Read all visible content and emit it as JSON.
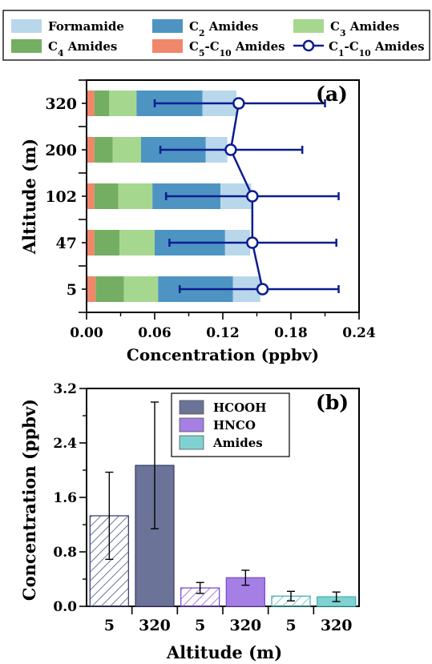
{
  "colors": {
    "formamide": "#b9d7ea",
    "c2": "#4d94c2",
    "c3": "#a6d78f",
    "c4": "#74ae62",
    "c5c10": "#f0876a",
    "line": "#0a1d8f",
    "hcooh": "#6c7398",
    "hnco": "#a57fe4",
    "amides": "#80d2d2"
  },
  "chart_data": [
    {
      "type": "bar",
      "orientation": "horizontal",
      "stacked": true,
      "panel_label": "(a)",
      "xlabel": "Concentration (ppbv)",
      "ylabel": "Altitude (m)",
      "xlim": [
        0,
        0.24
      ],
      "xticks": [
        "0.00",
        "0.06",
        "0.12",
        "0.18",
        "0.24"
      ],
      "categories": [
        "320",
        "200",
        "102",
        "47",
        "5"
      ],
      "series": [
        {
          "name": "C5-C10 Amides",
          "legend": {
            "base": "C",
            "sub": "5",
            "mid": "-C",
            "sub2": "10",
            "rest": " Amides"
          },
          "color_key": "c5c10",
          "values": [
            0.007,
            0.007,
            0.007,
            0.007,
            0.008
          ]
        },
        {
          "name": "C4 Amides",
          "legend": {
            "base": "C",
            "sub": "4",
            "rest": " Amides"
          },
          "color_key": "c4",
          "values": [
            0.013,
            0.016,
            0.021,
            0.022,
            0.025
          ]
        },
        {
          "name": "C3 Amides",
          "legend": {
            "base": "C",
            "sub": "3",
            "rest": " Amides"
          },
          "color_key": "c3",
          "values": [
            0.024,
            0.025,
            0.03,
            0.031,
            0.03
          ]
        },
        {
          "name": "C2 Amides",
          "legend": {
            "base": "C",
            "sub": "2",
            "rest": " Amides"
          },
          "color_key": "c2",
          "values": [
            0.058,
            0.057,
            0.06,
            0.062,
            0.066
          ]
        },
        {
          "name": "Formamide",
          "legend": {
            "base": "Formamide"
          },
          "color_key": "formamide",
          "values": [
            0.03,
            0.019,
            0.027,
            0.022,
            0.024
          ]
        }
      ],
      "line_series": {
        "name": "C1-C10 Amides",
        "legend": {
          "base": "C",
          "sub": "1",
          "mid": "-C",
          "sub2": "10",
          "rest": " Amides"
        },
        "values": [
          0.134,
          0.127,
          0.146,
          0.146,
          0.155
        ],
        "error_low": [
          0.06,
          0.065,
          0.07,
          0.073,
          0.082
        ],
        "error_high": [
          0.21,
          0.19,
          0.222,
          0.22,
          0.222
        ]
      },
      "legend_order": [
        "Formamide",
        "C2 Amides",
        "C3 Amides",
        "C4 Amides",
        "C5-C10 Amides",
        "C1-C10 Amides"
      ]
    },
    {
      "type": "bar",
      "panel_label": "(b)",
      "xlabel": "Altitude (m)",
      "ylabel": "Concentration (ppbv)",
      "ylim": [
        0,
        3.2
      ],
      "yticks": [
        "0.0",
        "0.8",
        "1.6",
        "2.4",
        "3.2"
      ],
      "categories": [
        "5",
        "320",
        "5",
        "320",
        "5",
        "320"
      ],
      "values": [
        1.33,
        2.07,
        0.27,
        0.42,
        0.15,
        0.14
      ],
      "error_low": [
        0.69,
        1.14,
        0.19,
        0.31,
        0.08,
        0.07
      ],
      "error_high": [
        1.97,
        3.0,
        0.35,
        0.53,
        0.22,
        0.21
      ],
      "groups": [
        {
          "name": "HCOOH",
          "color_key": "hcooh",
          "bars": [
            0,
            1
          ]
        },
        {
          "name": "HNCO",
          "color_key": "hnco",
          "bars": [
            2,
            3
          ]
        },
        {
          "name": "Amides",
          "color_key": "amides",
          "bars": [
            4,
            5
          ]
        }
      ],
      "hatched_bars": [
        0,
        2,
        4
      ]
    }
  ]
}
